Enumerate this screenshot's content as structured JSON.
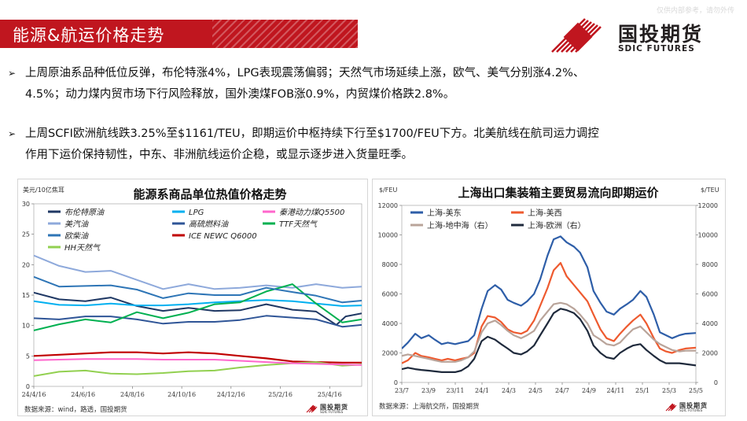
{
  "header": {
    "title": "能源&航运价格走势",
    "watermark": "仅供内部参考，请勿外传",
    "logo_cn": "国投期货",
    "logo_en": "SDIC FUTURES",
    "brand_color": "#c0161f"
  },
  "bullets": [
    {
      "lines": [
        "上周原油系品种低位反弹，布伦特涨4%，LPG表现震荡偏弱；天然气市场延续上涨，欧气、美气分别涨4.2%、",
        "4.5%；动力煤内贸市场下行风险释放，国外澳煤FOB涨0.9%，内贸煤价格跌2.8%。"
      ]
    },
    {
      "lines": [
        "上周SCFI欧洲航线跌3.25%至$1161/TEU，即期运价中枢持续下行至$1700/FEU下方。北美航线在航司运力调控",
        "作用下运价保持韧性，中东、非洲航线运价企稳，或显示逐步进入货量旺季。"
      ]
    }
  ],
  "chart_data": [
    {
      "type": "line",
      "title": "能源系商品单位热值价格走势",
      "ylabel": "美元/10亿焦耳",
      "ylim": [
        0,
        30
      ],
      "yticks": [
        0,
        5,
        10,
        15,
        20,
        25,
        30
      ],
      "x_ticks": [
        "24/4/16",
        "24/6/16",
        "24/8/16",
        "24/10/16",
        "24/12/16",
        "25/2/16",
        "25/4/16"
      ],
      "x_range": [
        "2024-04-16",
        "2025-05-09"
      ],
      "legend_position": "top",
      "source": "数据来源：wind，路透，国投期货",
      "source_logo": "国投期货",
      "source_logo_en": "SDIC FUTURES",
      "series": [
        {
          "name": "布伦特原油",
          "color": "#1f3864",
          "width": 2,
          "x": [
            "2024-04-16",
            "2024-05-16",
            "2024-06-16",
            "2024-07-16",
            "2024-08-16",
            "2024-09-16",
            "2024-10-16",
            "2024-11-16",
            "2024-12-16",
            "2025-01-16",
            "2025-02-16",
            "2025-03-16",
            "2025-04-09",
            "2025-04-20",
            "2025-05-09"
          ],
          "values": [
            15.4,
            14.3,
            14.0,
            14.6,
            13.2,
            12.4,
            12.9,
            12.4,
            12.5,
            13.5,
            12.6,
            12.3,
            10.1,
            11.5,
            12.0
          ]
        },
        {
          "name": "LPG",
          "color": "#00b0f0",
          "width": 2,
          "x": [
            "2024-04-16",
            "2024-05-16",
            "2024-06-16",
            "2024-07-16",
            "2024-08-16",
            "2024-09-16",
            "2024-10-16",
            "2024-11-16",
            "2024-12-16",
            "2025-01-16",
            "2025-02-16",
            "2025-03-16",
            "2025-04-16",
            "2025-05-09"
          ],
          "values": [
            14.0,
            13.4,
            13.3,
            13.6,
            13.3,
            13.3,
            13.5,
            13.8,
            14.0,
            14.2,
            14.0,
            13.6,
            13.2,
            13.3
          ]
        },
        {
          "name": "美汽油",
          "color": "#8ea9db",
          "width": 2,
          "x": [
            "2024-04-16",
            "2024-05-16",
            "2024-06-16",
            "2024-07-16",
            "2024-08-16",
            "2024-09-16",
            "2024-10-16",
            "2024-11-16",
            "2024-12-16",
            "2025-01-16",
            "2025-02-16",
            "2025-03-16",
            "2025-04-16",
            "2025-05-09"
          ],
          "values": [
            21.5,
            19.8,
            18.8,
            19.0,
            17.5,
            16.0,
            16.8,
            16.0,
            16.2,
            16.6,
            16.2,
            16.8,
            16.2,
            16.4
          ]
        },
        {
          "name": "高硫燃料油",
          "color": "#2f5597",
          "width": 2,
          "x": [
            "2024-04-16",
            "2024-05-16",
            "2024-06-16",
            "2024-07-16",
            "2024-08-16",
            "2024-09-16",
            "2024-10-16",
            "2024-11-16",
            "2024-12-16",
            "2025-01-16",
            "2025-02-16",
            "2025-03-16",
            "2025-04-16",
            "2025-05-09"
          ],
          "values": [
            11.2,
            11.0,
            11.5,
            11.5,
            11.0,
            10.3,
            10.6,
            10.6,
            10.9,
            11.6,
            11.3,
            11.0,
            9.8,
            10.1
          ]
        },
        {
          "name": "TTF天然气",
          "color": "#00b050",
          "width": 2,
          "x": [
            "2024-04-16",
            "2024-05-16",
            "2024-06-16",
            "2024-07-16",
            "2024-08-16",
            "2024-09-16",
            "2024-10-16",
            "2024-11-16",
            "2024-12-16",
            "2025-01-16",
            "2025-02-16",
            "2025-03-16",
            "2025-04-16",
            "2025-05-09"
          ],
          "values": [
            9.2,
            10.2,
            11.0,
            10.5,
            12.2,
            11.2,
            12.1,
            13.5,
            13.8,
            15.6,
            16.8,
            13.6,
            10.5,
            11.0
          ]
        },
        {
          "name": "欧柴油",
          "color": "#2e75b6",
          "width": 2,
          "x": [
            "2024-04-16",
            "2024-05-16",
            "2024-06-16",
            "2024-07-16",
            "2024-08-16",
            "2024-09-16",
            "2024-10-16",
            "2024-11-16",
            "2024-12-16",
            "2025-01-16",
            "2025-02-16",
            "2025-03-16",
            "2025-04-16",
            "2025-05-09"
          ],
          "values": [
            18.0,
            16.4,
            16.5,
            16.6,
            15.9,
            14.5,
            15.3,
            15.0,
            15.0,
            16.2,
            15.5,
            14.9,
            13.8,
            14.1
          ]
        },
        {
          "name": "ICE NEWC Q6000",
          "color": "#c00000",
          "width": 2.2,
          "x": [
            "2024-04-16",
            "2024-05-16",
            "2024-06-16",
            "2024-07-16",
            "2024-08-16",
            "2024-09-16",
            "2024-10-16",
            "2024-11-16",
            "2024-12-16",
            "2025-01-16",
            "2025-02-16",
            "2025-03-16",
            "2025-04-16",
            "2025-05-09"
          ],
          "values": [
            5.0,
            5.2,
            5.4,
            5.6,
            5.6,
            5.4,
            5.6,
            5.4,
            5.0,
            4.6,
            4.1,
            4.0,
            3.9,
            3.9
          ]
        },
        {
          "name": "HH天然气",
          "color": "#92d050",
          "width": 2,
          "x": [
            "2024-04-16",
            "2024-05-16",
            "2024-06-16",
            "2024-07-16",
            "2024-08-16",
            "2024-09-16",
            "2024-10-16",
            "2024-11-16",
            "2024-12-16",
            "2025-01-16",
            "2025-02-16",
            "2025-03-16",
            "2025-04-16",
            "2025-05-09"
          ],
          "values": [
            1.7,
            2.4,
            2.6,
            2.1,
            2.0,
            2.2,
            2.5,
            2.6,
            3.1,
            3.5,
            3.8,
            4.0,
            3.4,
            3.6
          ]
        },
        {
          "name": "秦港动力煤Q5500",
          "color": "#ff66cc",
          "width": 2,
          "x": [
            "2024-04-16",
            "2024-05-16",
            "2024-06-16",
            "2024-07-16",
            "2024-08-16",
            "2024-09-16",
            "2024-10-16",
            "2024-11-16",
            "2024-12-16",
            "2025-01-16",
            "2025-02-16",
            "2025-03-16",
            "2025-04-16",
            "2025-05-09"
          ],
          "values": [
            4.3,
            4.4,
            4.5,
            4.5,
            4.5,
            4.4,
            4.4,
            4.4,
            4.2,
            4.0,
            3.8,
            3.7,
            3.6,
            3.5
          ]
        }
      ]
    },
    {
      "type": "line",
      "title": "上海出口集装箱主要贸易流向即期运价",
      "ylabel_left": "$/FEU",
      "ylabel_right": "$/TEU",
      "ylim": [
        0,
        12000
      ],
      "yticks": [
        0,
        2000,
        4000,
        6000,
        8000,
        10000,
        12000
      ],
      "x_ticks": [
        "23/7",
        "23/9",
        "23/11",
        "24/1",
        "24/3",
        "24/5",
        "24/7",
        "24/9",
        "24/11",
        "25/1",
        "25/3",
        "25/5"
      ],
      "x_range": [
        "2023-07-01",
        "2025-05-09"
      ],
      "legend_position": "top-left",
      "source": "数据来源：上海航交所，国投期货",
      "source_logo": "国投期货",
      "source_logo_en": "SDIC FUTURES",
      "series": [
        {
          "name": "上海-美东",
          "axis": "left",
          "color": "#2e5ea8",
          "width": 2.2,
          "x": [
            "2023-07-01",
            "2023-07-15",
            "2023-08-01",
            "2023-08-15",
            "2023-09-01",
            "2023-09-15",
            "2023-10-01",
            "2023-10-15",
            "2023-11-01",
            "2023-11-15",
            "2023-12-01",
            "2023-12-15",
            "2024-01-01",
            "2024-01-15",
            "2024-02-01",
            "2024-02-15",
            "2024-03-01",
            "2024-03-15",
            "2024-04-01",
            "2024-04-15",
            "2024-05-01",
            "2024-05-15",
            "2024-06-01",
            "2024-06-15",
            "2024-07-01",
            "2024-07-15",
            "2024-08-01",
            "2024-08-15",
            "2024-09-01",
            "2024-09-15",
            "2024-10-01",
            "2024-10-15",
            "2024-11-01",
            "2024-11-15",
            "2024-12-01",
            "2024-12-15",
            "2025-01-01",
            "2025-01-15",
            "2025-02-01",
            "2025-02-15",
            "2025-03-01",
            "2025-03-15",
            "2025-04-01",
            "2025-04-15",
            "2025-05-09"
          ],
          "values": [
            2300,
            2700,
            3300,
            3000,
            3200,
            2900,
            2600,
            2700,
            2600,
            2700,
            2800,
            3200,
            5000,
            6200,
            6600,
            6300,
            5600,
            5400,
            5200,
            5500,
            6000,
            7000,
            8600,
            9700,
            9900,
            9500,
            9200,
            8800,
            7800,
            6200,
            5400,
            4800,
            4600,
            5000,
            5300,
            5600,
            6200,
            5800,
            4600,
            3400,
            3200,
            3000,
            3200,
            3300,
            3350
          ]
        },
        {
          "name": "上海-美西",
          "axis": "left",
          "color": "#ee5a2f",
          "width": 2.2,
          "x": [
            "2023-07-01",
            "2023-07-15",
            "2023-08-01",
            "2023-08-15",
            "2023-09-01",
            "2023-09-15",
            "2023-10-01",
            "2023-10-15",
            "2023-11-01",
            "2023-11-15",
            "2023-12-01",
            "2023-12-15",
            "2024-01-01",
            "2024-01-15",
            "2024-02-01",
            "2024-02-15",
            "2024-03-01",
            "2024-03-15",
            "2024-04-01",
            "2024-04-15",
            "2024-05-01",
            "2024-05-15",
            "2024-06-01",
            "2024-06-15",
            "2024-07-01",
            "2024-07-15",
            "2024-08-01",
            "2024-08-15",
            "2024-09-01",
            "2024-09-15",
            "2024-10-01",
            "2024-10-15",
            "2024-11-01",
            "2024-11-15",
            "2024-12-01",
            "2024-12-15",
            "2025-01-01",
            "2025-01-15",
            "2025-02-01",
            "2025-02-15",
            "2025-03-01",
            "2025-03-15",
            "2025-04-01",
            "2025-04-15",
            "2025-05-09"
          ],
          "values": [
            1300,
            1500,
            2000,
            1800,
            1700,
            1600,
            1500,
            1600,
            1500,
            1600,
            1700,
            2000,
            3800,
            4500,
            4400,
            4100,
            3600,
            3400,
            3300,
            3500,
            4200,
            5200,
            6400,
            7600,
            8100,
            7200,
            6600,
            6100,
            5500,
            4600,
            3600,
            3000,
            2800,
            3300,
            3800,
            4200,
            4600,
            4000,
            3000,
            2300,
            2100,
            2000,
            2200,
            2300,
            2350
          ]
        },
        {
          "name": "上海-地中海（右）",
          "axis": "right",
          "color": "#b9a49a",
          "width": 2.2,
          "x": [
            "2023-07-01",
            "2023-07-15",
            "2023-08-01",
            "2023-08-15",
            "2023-09-01",
            "2023-09-15",
            "2023-10-01",
            "2023-10-15",
            "2023-11-01",
            "2023-11-15",
            "2023-12-01",
            "2023-12-15",
            "2024-01-01",
            "2024-01-15",
            "2024-02-01",
            "2024-02-15",
            "2024-03-01",
            "2024-03-15",
            "2024-04-01",
            "2024-04-15",
            "2024-05-01",
            "2024-05-15",
            "2024-06-01",
            "2024-06-15",
            "2024-07-01",
            "2024-07-15",
            "2024-08-01",
            "2024-08-15",
            "2024-09-01",
            "2024-09-15",
            "2024-10-01",
            "2024-10-15",
            "2024-11-01",
            "2024-11-15",
            "2024-12-01",
            "2024-12-15",
            "2025-01-01",
            "2025-01-15",
            "2025-02-01",
            "2025-02-15",
            "2025-03-01",
            "2025-03-15",
            "2025-04-01",
            "2025-04-15",
            "2025-05-09"
          ],
          "values": [
            1800,
            1900,
            1800,
            1700,
            1600,
            1500,
            1400,
            1400,
            1400,
            1500,
            1700,
            2100,
            3400,
            4000,
            4200,
            3900,
            3500,
            3200,
            3000,
            3200,
            3500,
            4200,
            4800,
            5300,
            5400,
            5300,
            5000,
            4600,
            4000,
            3200,
            2900,
            2600,
            2500,
            2700,
            3200,
            3600,
            3800,
            3400,
            2900,
            2600,
            2400,
            2200,
            2100,
            2150,
            2150
          ]
        },
        {
          "name": "上海-欧洲（右）",
          "axis": "right",
          "color": "#1f2a3c",
          "width": 2.2,
          "x": [
            "2023-07-01",
            "2023-07-15",
            "2023-08-01",
            "2023-08-15",
            "2023-09-01",
            "2023-09-15",
            "2023-10-01",
            "2023-10-15",
            "2023-11-01",
            "2023-11-15",
            "2023-12-01",
            "2023-12-15",
            "2024-01-01",
            "2024-01-15",
            "2024-02-01",
            "2024-02-15",
            "2024-03-01",
            "2024-03-15",
            "2024-04-01",
            "2024-04-15",
            "2024-05-01",
            "2024-05-15",
            "2024-06-01",
            "2024-06-15",
            "2024-07-01",
            "2024-07-15",
            "2024-08-01",
            "2024-08-15",
            "2024-09-01",
            "2024-09-15",
            "2024-10-01",
            "2024-10-15",
            "2024-11-01",
            "2024-11-15",
            "2024-12-01",
            "2024-12-15",
            "2025-01-01",
            "2025-01-15",
            "2025-02-01",
            "2025-02-15",
            "2025-03-01",
            "2025-03-15",
            "2025-04-01",
            "2025-04-15",
            "2025-05-09"
          ],
          "values": [
            900,
            1000,
            900,
            850,
            800,
            750,
            700,
            700,
            700,
            800,
            1100,
            1600,
            2800,
            3100,
            2900,
            2600,
            2300,
            2000,
            1900,
            2100,
            2500,
            3200,
            4000,
            4700,
            5000,
            4900,
            4700,
            4300,
            3500,
            2500,
            2000,
            1700,
            1600,
            2000,
            2300,
            2500,
            2600,
            2200,
            1800,
            1500,
            1300,
            1300,
            1300,
            1250,
            1150
          ]
        }
      ]
    }
  ]
}
